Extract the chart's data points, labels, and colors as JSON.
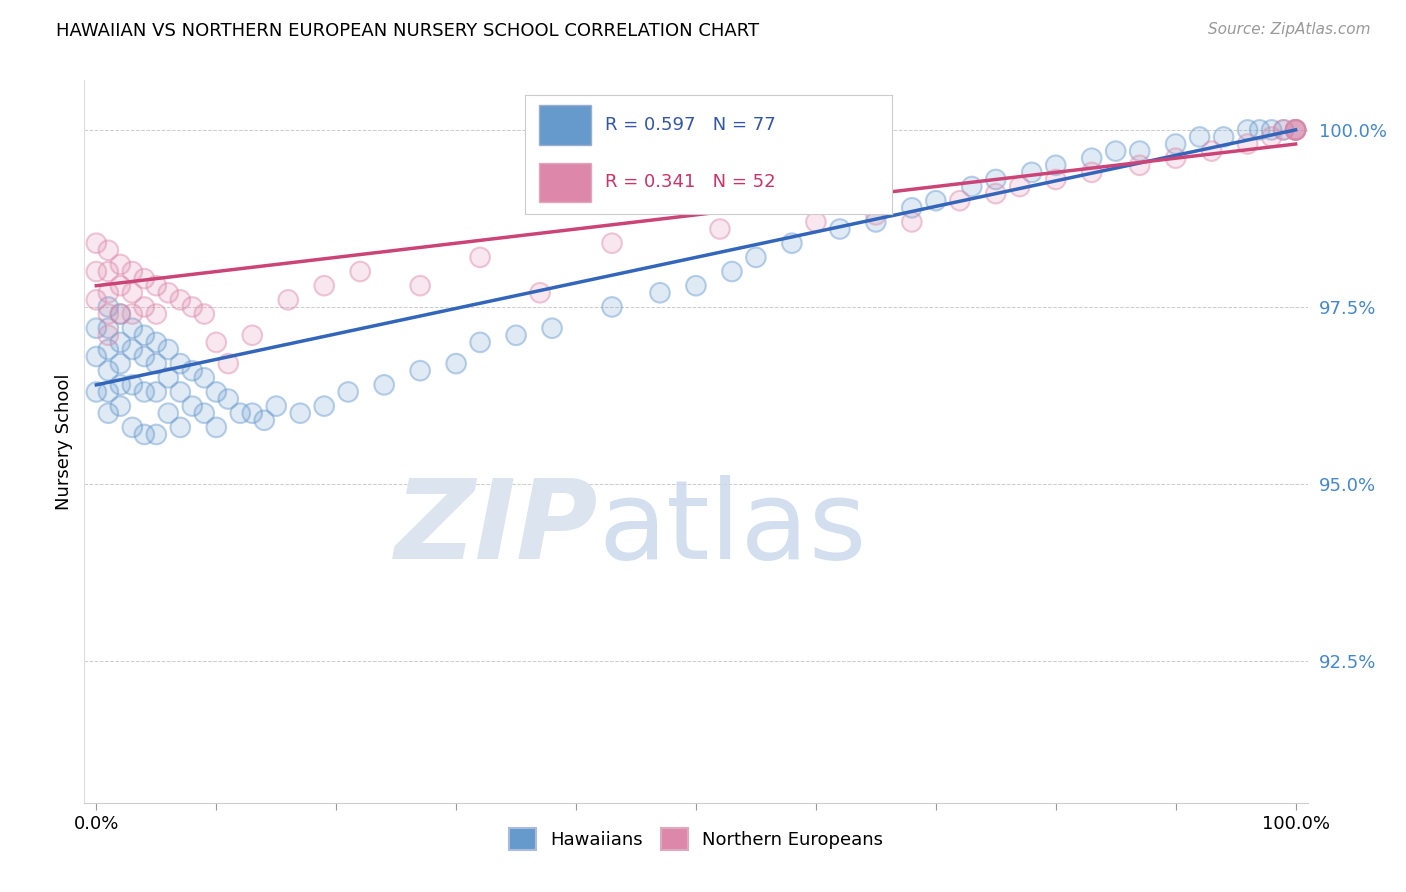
{
  "title": "HAWAIIAN VS NORTHERN EUROPEAN NURSERY SCHOOL CORRELATION CHART",
  "source": "Source: ZipAtlas.com",
  "ylabel": "Nursery School",
  "ylim": [
    0.905,
    1.007
  ],
  "xlim": [
    -0.01,
    1.01
  ],
  "ytick_labels": [
    "92.5%",
    "95.0%",
    "97.5%",
    "100.0%"
  ],
  "ytick_values": [
    0.925,
    0.95,
    0.975,
    1.0
  ],
  "xtick_values": [
    0.0,
    0.1,
    0.2,
    0.3,
    0.4,
    0.5,
    0.6,
    0.7,
    0.8,
    0.9,
    1.0
  ],
  "hawaiian_R": 0.597,
  "hawaiian_N": 77,
  "northern_R": 0.341,
  "northern_N": 52,
  "blue_color": "#6699cc",
  "pink_color": "#dd88aa",
  "blue_line_color": "#3366bb",
  "pink_line_color": "#cc4477",
  "hawaiian_x": [
    0.0,
    0.0,
    0.0,
    0.01,
    0.01,
    0.01,
    0.01,
    0.01,
    0.01,
    0.02,
    0.02,
    0.02,
    0.02,
    0.02,
    0.03,
    0.03,
    0.03,
    0.03,
    0.04,
    0.04,
    0.04,
    0.04,
    0.05,
    0.05,
    0.05,
    0.05,
    0.06,
    0.06,
    0.06,
    0.07,
    0.07,
    0.07,
    0.08,
    0.08,
    0.09,
    0.09,
    0.1,
    0.1,
    0.11,
    0.12,
    0.13,
    0.14,
    0.15,
    0.17,
    0.19,
    0.21,
    0.24,
    0.27,
    0.3,
    0.32,
    0.35,
    0.38,
    0.43,
    0.47,
    0.5,
    0.53,
    0.55,
    0.58,
    0.62,
    0.65,
    0.68,
    0.7,
    0.73,
    0.75,
    0.78,
    0.8,
    0.83,
    0.85,
    0.87,
    0.9,
    0.92,
    0.94,
    0.96,
    0.97,
    0.98,
    0.99,
    1.0
  ],
  "hawaiian_y": [
    0.972,
    0.968,
    0.963,
    0.975,
    0.972,
    0.969,
    0.966,
    0.963,
    0.96,
    0.974,
    0.97,
    0.967,
    0.964,
    0.961,
    0.972,
    0.969,
    0.964,
    0.958,
    0.971,
    0.968,
    0.963,
    0.957,
    0.97,
    0.967,
    0.963,
    0.957,
    0.969,
    0.965,
    0.96,
    0.967,
    0.963,
    0.958,
    0.966,
    0.961,
    0.965,
    0.96,
    0.963,
    0.958,
    0.962,
    0.96,
    0.96,
    0.959,
    0.961,
    0.96,
    0.961,
    0.963,
    0.964,
    0.966,
    0.967,
    0.97,
    0.971,
    0.972,
    0.975,
    0.977,
    0.978,
    0.98,
    0.982,
    0.984,
    0.986,
    0.987,
    0.989,
    0.99,
    0.992,
    0.993,
    0.994,
    0.995,
    0.996,
    0.997,
    0.997,
    0.998,
    0.999,
    0.999,
    1.0,
    1.0,
    1.0,
    1.0,
    1.0
  ],
  "northern_x": [
    0.0,
    0.0,
    0.0,
    0.01,
    0.01,
    0.01,
    0.01,
    0.01,
    0.02,
    0.02,
    0.02,
    0.03,
    0.03,
    0.03,
    0.04,
    0.04,
    0.05,
    0.05,
    0.06,
    0.07,
    0.08,
    0.09,
    0.1,
    0.11,
    0.13,
    0.16,
    0.19,
    0.22,
    0.27,
    0.32,
    0.37,
    0.43,
    0.52,
    0.6,
    0.65,
    0.68,
    0.72,
    0.75,
    0.77,
    0.8,
    0.83,
    0.87,
    0.9,
    0.93,
    0.96,
    0.98,
    0.99,
    1.0,
    1.0,
    1.0,
    1.0,
    1.0
  ],
  "northern_y": [
    0.984,
    0.98,
    0.976,
    0.983,
    0.98,
    0.977,
    0.974,
    0.971,
    0.981,
    0.978,
    0.974,
    0.98,
    0.977,
    0.974,
    0.979,
    0.975,
    0.978,
    0.974,
    0.977,
    0.976,
    0.975,
    0.974,
    0.97,
    0.967,
    0.971,
    0.976,
    0.978,
    0.98,
    0.978,
    0.982,
    0.977,
    0.984,
    0.986,
    0.987,
    0.988,
    0.987,
    0.99,
    0.991,
    0.992,
    0.993,
    0.994,
    0.995,
    0.996,
    0.997,
    0.998,
    0.999,
    1.0,
    1.0,
    1.0,
    1.0,
    1.0,
    1.0
  ]
}
